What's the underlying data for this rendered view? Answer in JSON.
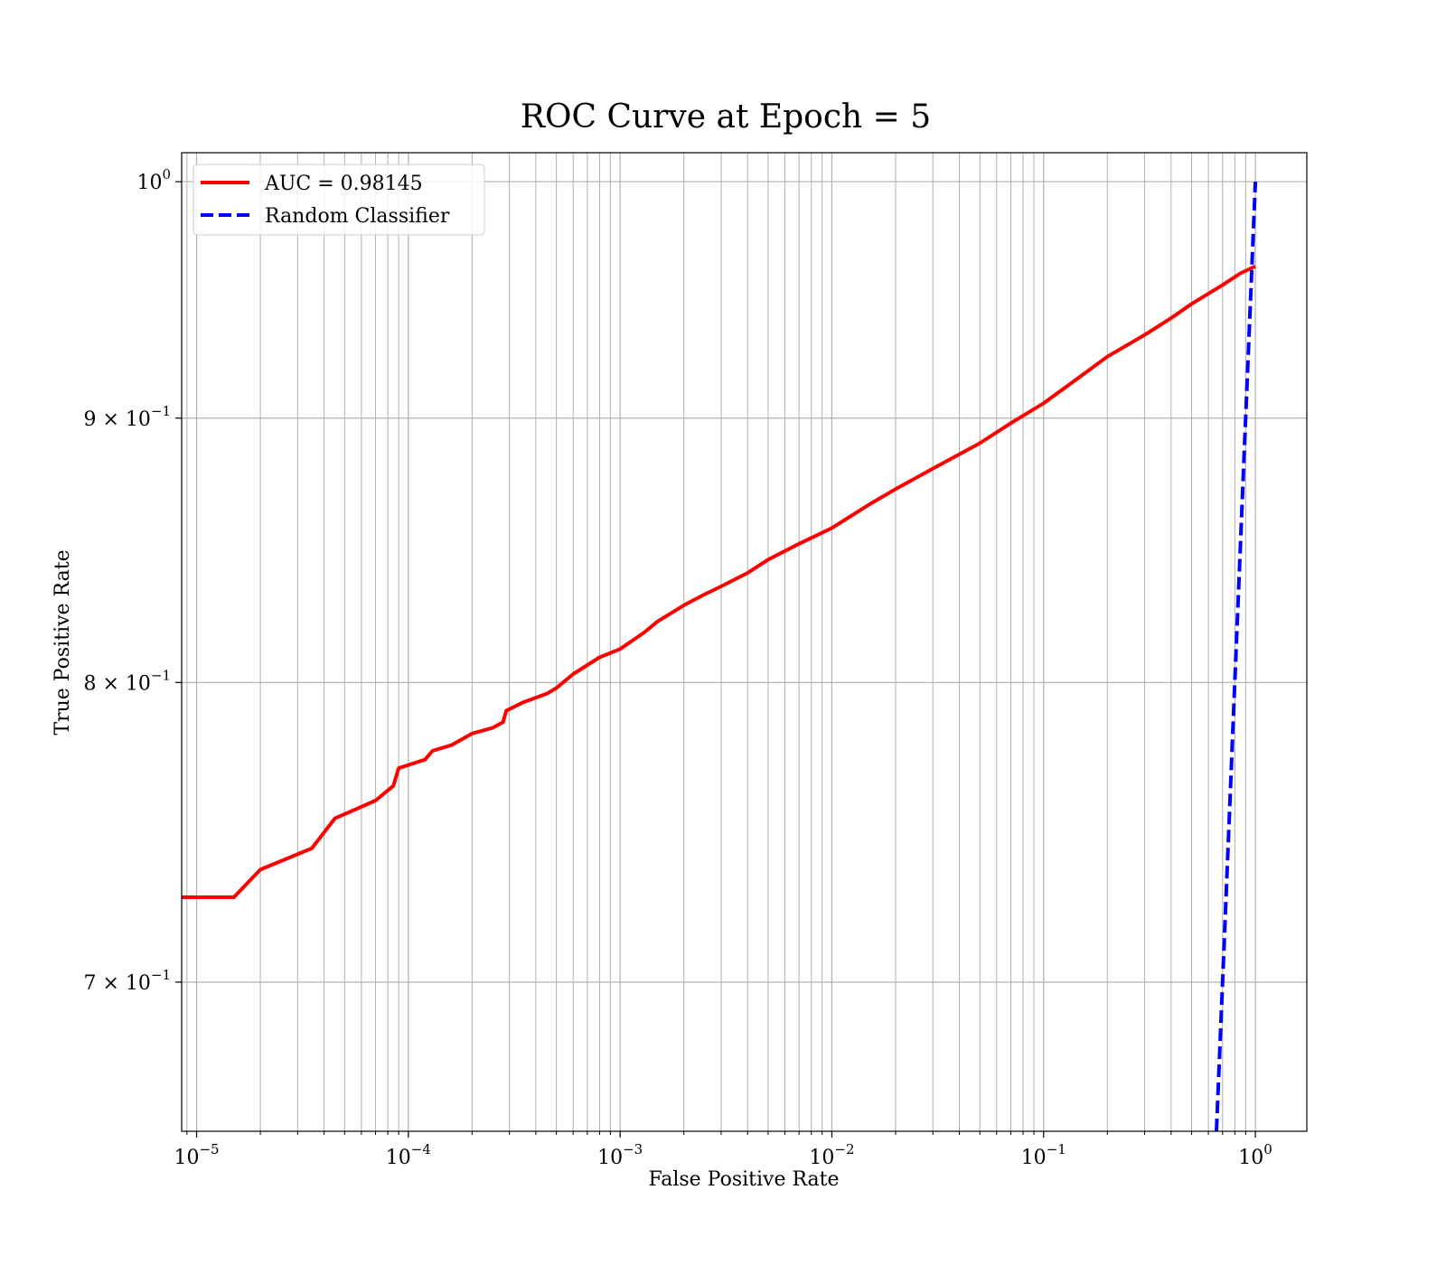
{
  "chart_data": {
    "type": "line",
    "title": "ROC Curve at Epoch = 5",
    "xlabel": "False Positive Rate",
    "ylabel": "True Positive Rate",
    "xscale": "log",
    "yscale": "log",
    "xlim": [
      8.5e-06,
      1.75
    ],
    "ylim": [
      0.655,
      1.013
    ],
    "grid": "both",
    "legend_position": "top-left",
    "x_ticks": [
      {
        "base": "10",
        "exp": "−5"
      },
      {
        "base": "10",
        "exp": "−4"
      },
      {
        "base": "10",
        "exp": "−3"
      },
      {
        "base": "10",
        "exp": "−2"
      },
      {
        "base": "10",
        "exp": "−1"
      },
      {
        "base": "10",
        "exp": "0"
      }
    ],
    "y_ticks": [
      {
        "mant": "7 × ",
        "base": "10",
        "exp": "−1"
      },
      {
        "mant": "8 × ",
        "base": "10",
        "exp": "−1"
      },
      {
        "mant": "9 × ",
        "base": "10",
        "exp": "−1"
      },
      {
        "mant": "",
        "base": "10",
        "exp": "0"
      }
    ],
    "series": [
      {
        "name": "AUC = 0.98145",
        "color": "#ff0000",
        "style": "solid",
        "x": [
          8.5e-06,
          1.5e-05,
          2e-05,
          3.5e-05,
          4.5e-05,
          7e-05,
          8.5e-05,
          9e-05,
          0.00012,
          0.00013,
          0.00016,
          0.0002,
          0.00025,
          0.00028,
          0.00029,
          0.00035,
          0.00045,
          0.0005,
          0.0006,
          0.0008,
          0.001,
          0.0013,
          0.0015,
          0.002,
          0.0025,
          0.003,
          0.004,
          0.005,
          0.007,
          0.01,
          0.015,
          0.02,
          0.03,
          0.05,
          0.07,
          0.1,
          0.15,
          0.2,
          0.3,
          0.4,
          0.5,
          0.7,
          0.85,
          1.0
        ],
        "y": [
          0.727,
          0.727,
          0.736,
          0.743,
          0.753,
          0.759,
          0.764,
          0.77,
          0.773,
          0.776,
          0.778,
          0.782,
          0.784,
          0.786,
          0.79,
          0.793,
          0.796,
          0.798,
          0.803,
          0.809,
          0.812,
          0.818,
          0.822,
          0.828,
          0.832,
          0.835,
          0.84,
          0.845,
          0.851,
          0.857,
          0.866,
          0.872,
          0.88,
          0.89,
          0.898,
          0.906,
          0.917,
          0.925,
          0.934,
          0.941,
          0.947,
          0.955,
          0.96,
          0.963
        ]
      },
      {
        "name": "Random Classifier",
        "color": "#0000ff",
        "style": "dashed",
        "x": [
          0.655,
          0.7,
          0.8,
          0.9,
          1.0
        ],
        "y": [
          0.655,
          0.7,
          0.8,
          0.9,
          1.0
        ]
      }
    ]
  }
}
